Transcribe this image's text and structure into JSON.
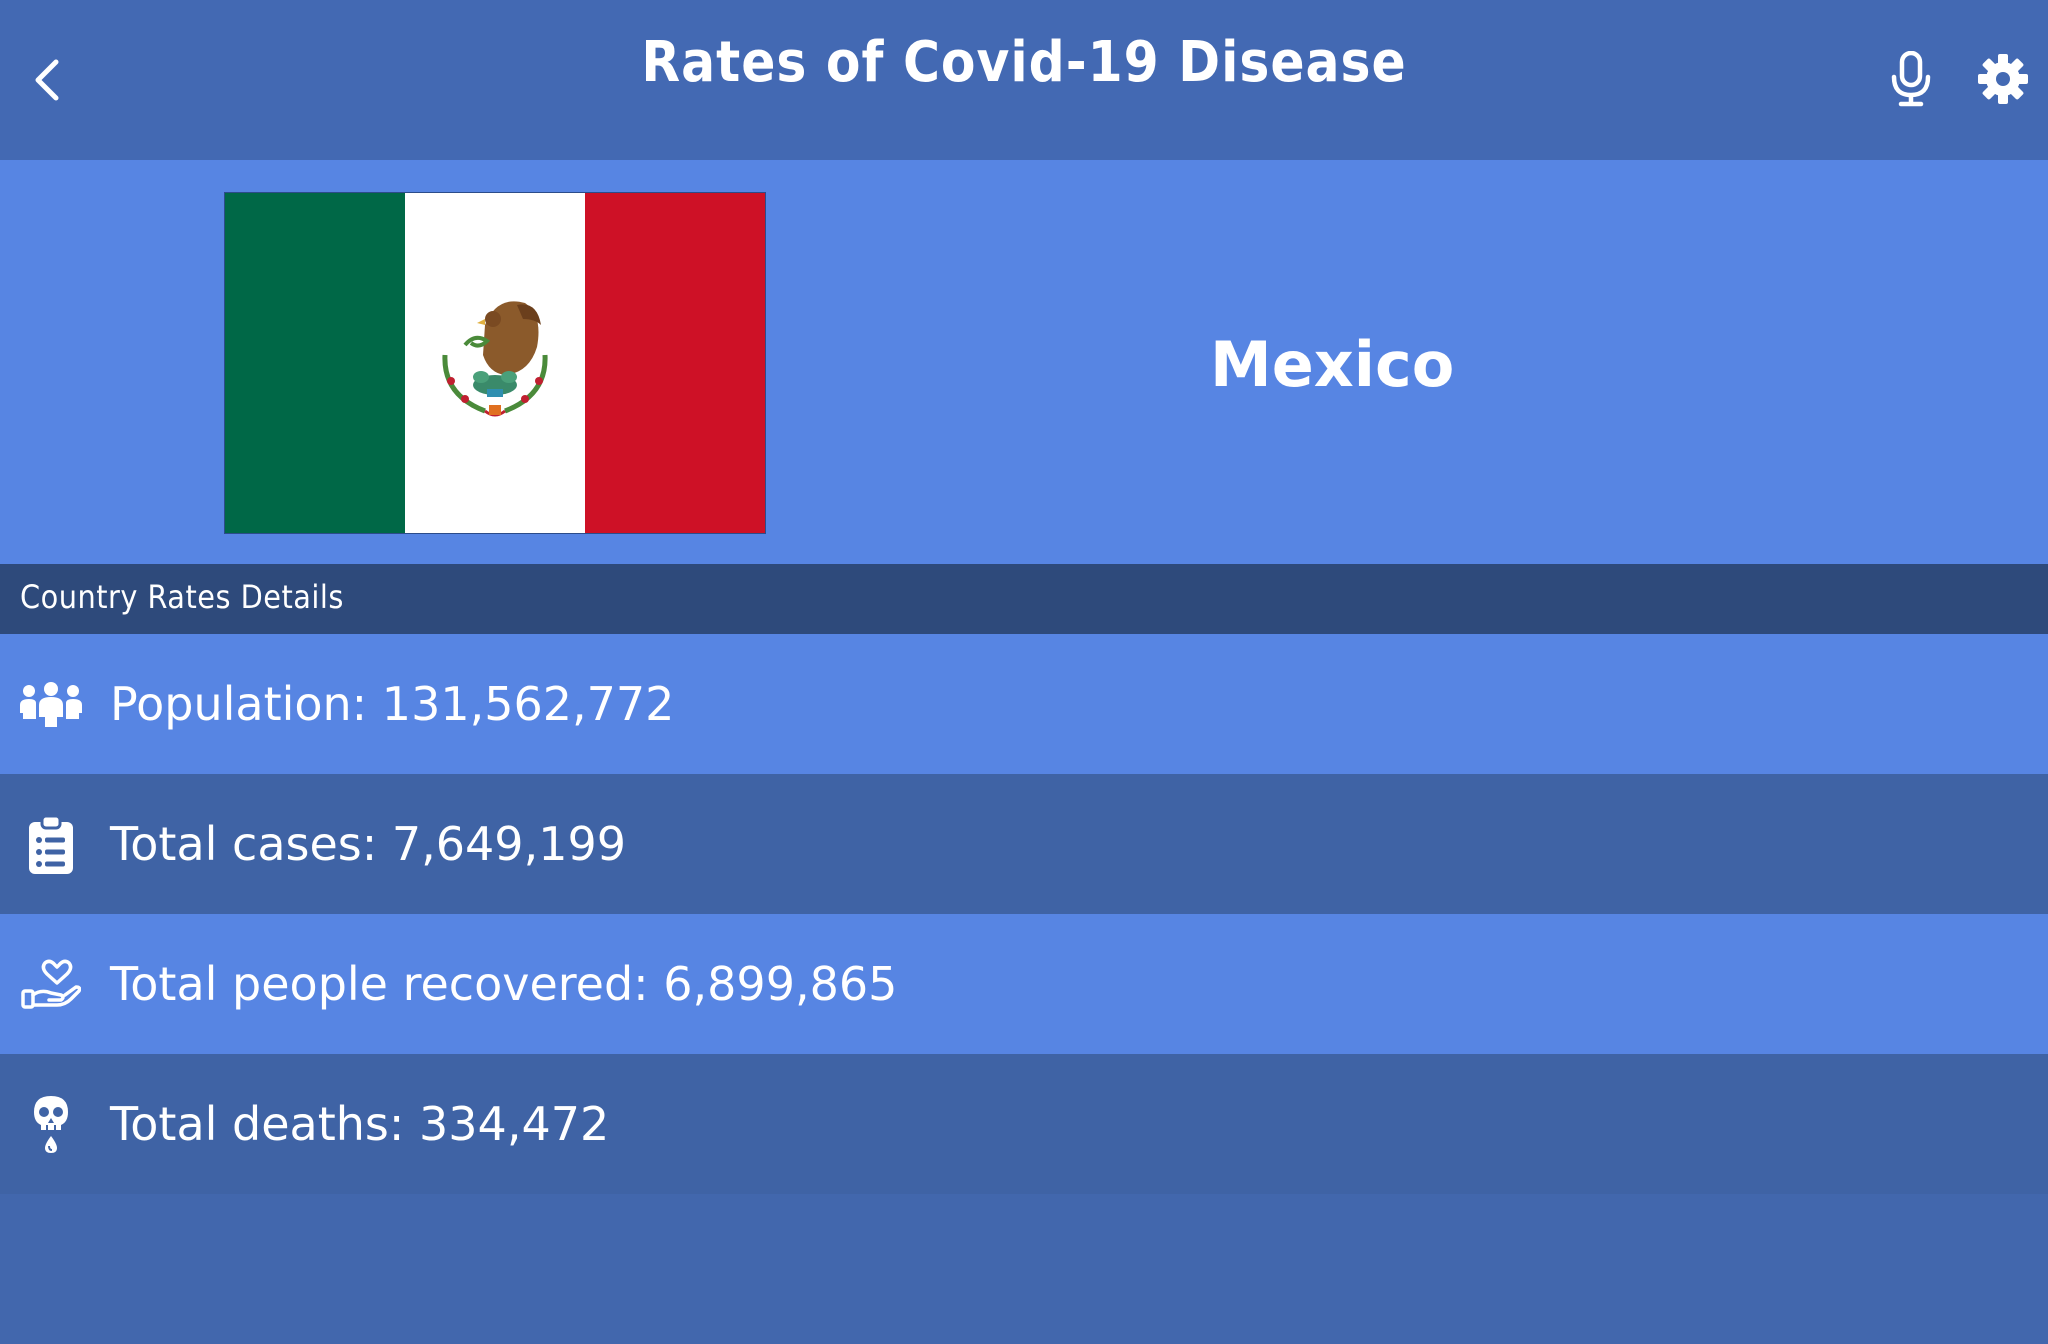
{
  "header": {
    "title": "Rates of Covid-19 Disease",
    "back_icon": "chevron-left-icon",
    "mic_icon": "microphone-icon",
    "settings_icon": "gear-icon"
  },
  "country": {
    "name": "Mexico",
    "flag_colors": [
      "#006847",
      "#ffffff",
      "#ce1126"
    ]
  },
  "section": {
    "title": "Country Rates Details"
  },
  "stats": [
    {
      "icon": "people-group-icon",
      "text": "Population: 131,562,772"
    },
    {
      "icon": "clipboard-list-icon",
      "text": "Total cases: 7,649,199"
    },
    {
      "icon": "hand-holding-heart-icon",
      "text": "Total people recovered: 6,899,865"
    },
    {
      "icon": "skull-icon",
      "text": "Total deaths: 334,472"
    }
  ],
  "colors": {
    "header_bg": "#4369b3",
    "banner_bg": "#5785e3",
    "section_bg": "#2e4a7b",
    "row_light": "#5785e3",
    "row_dark": "#3f63a5",
    "page_bg": "#4267ad"
  }
}
